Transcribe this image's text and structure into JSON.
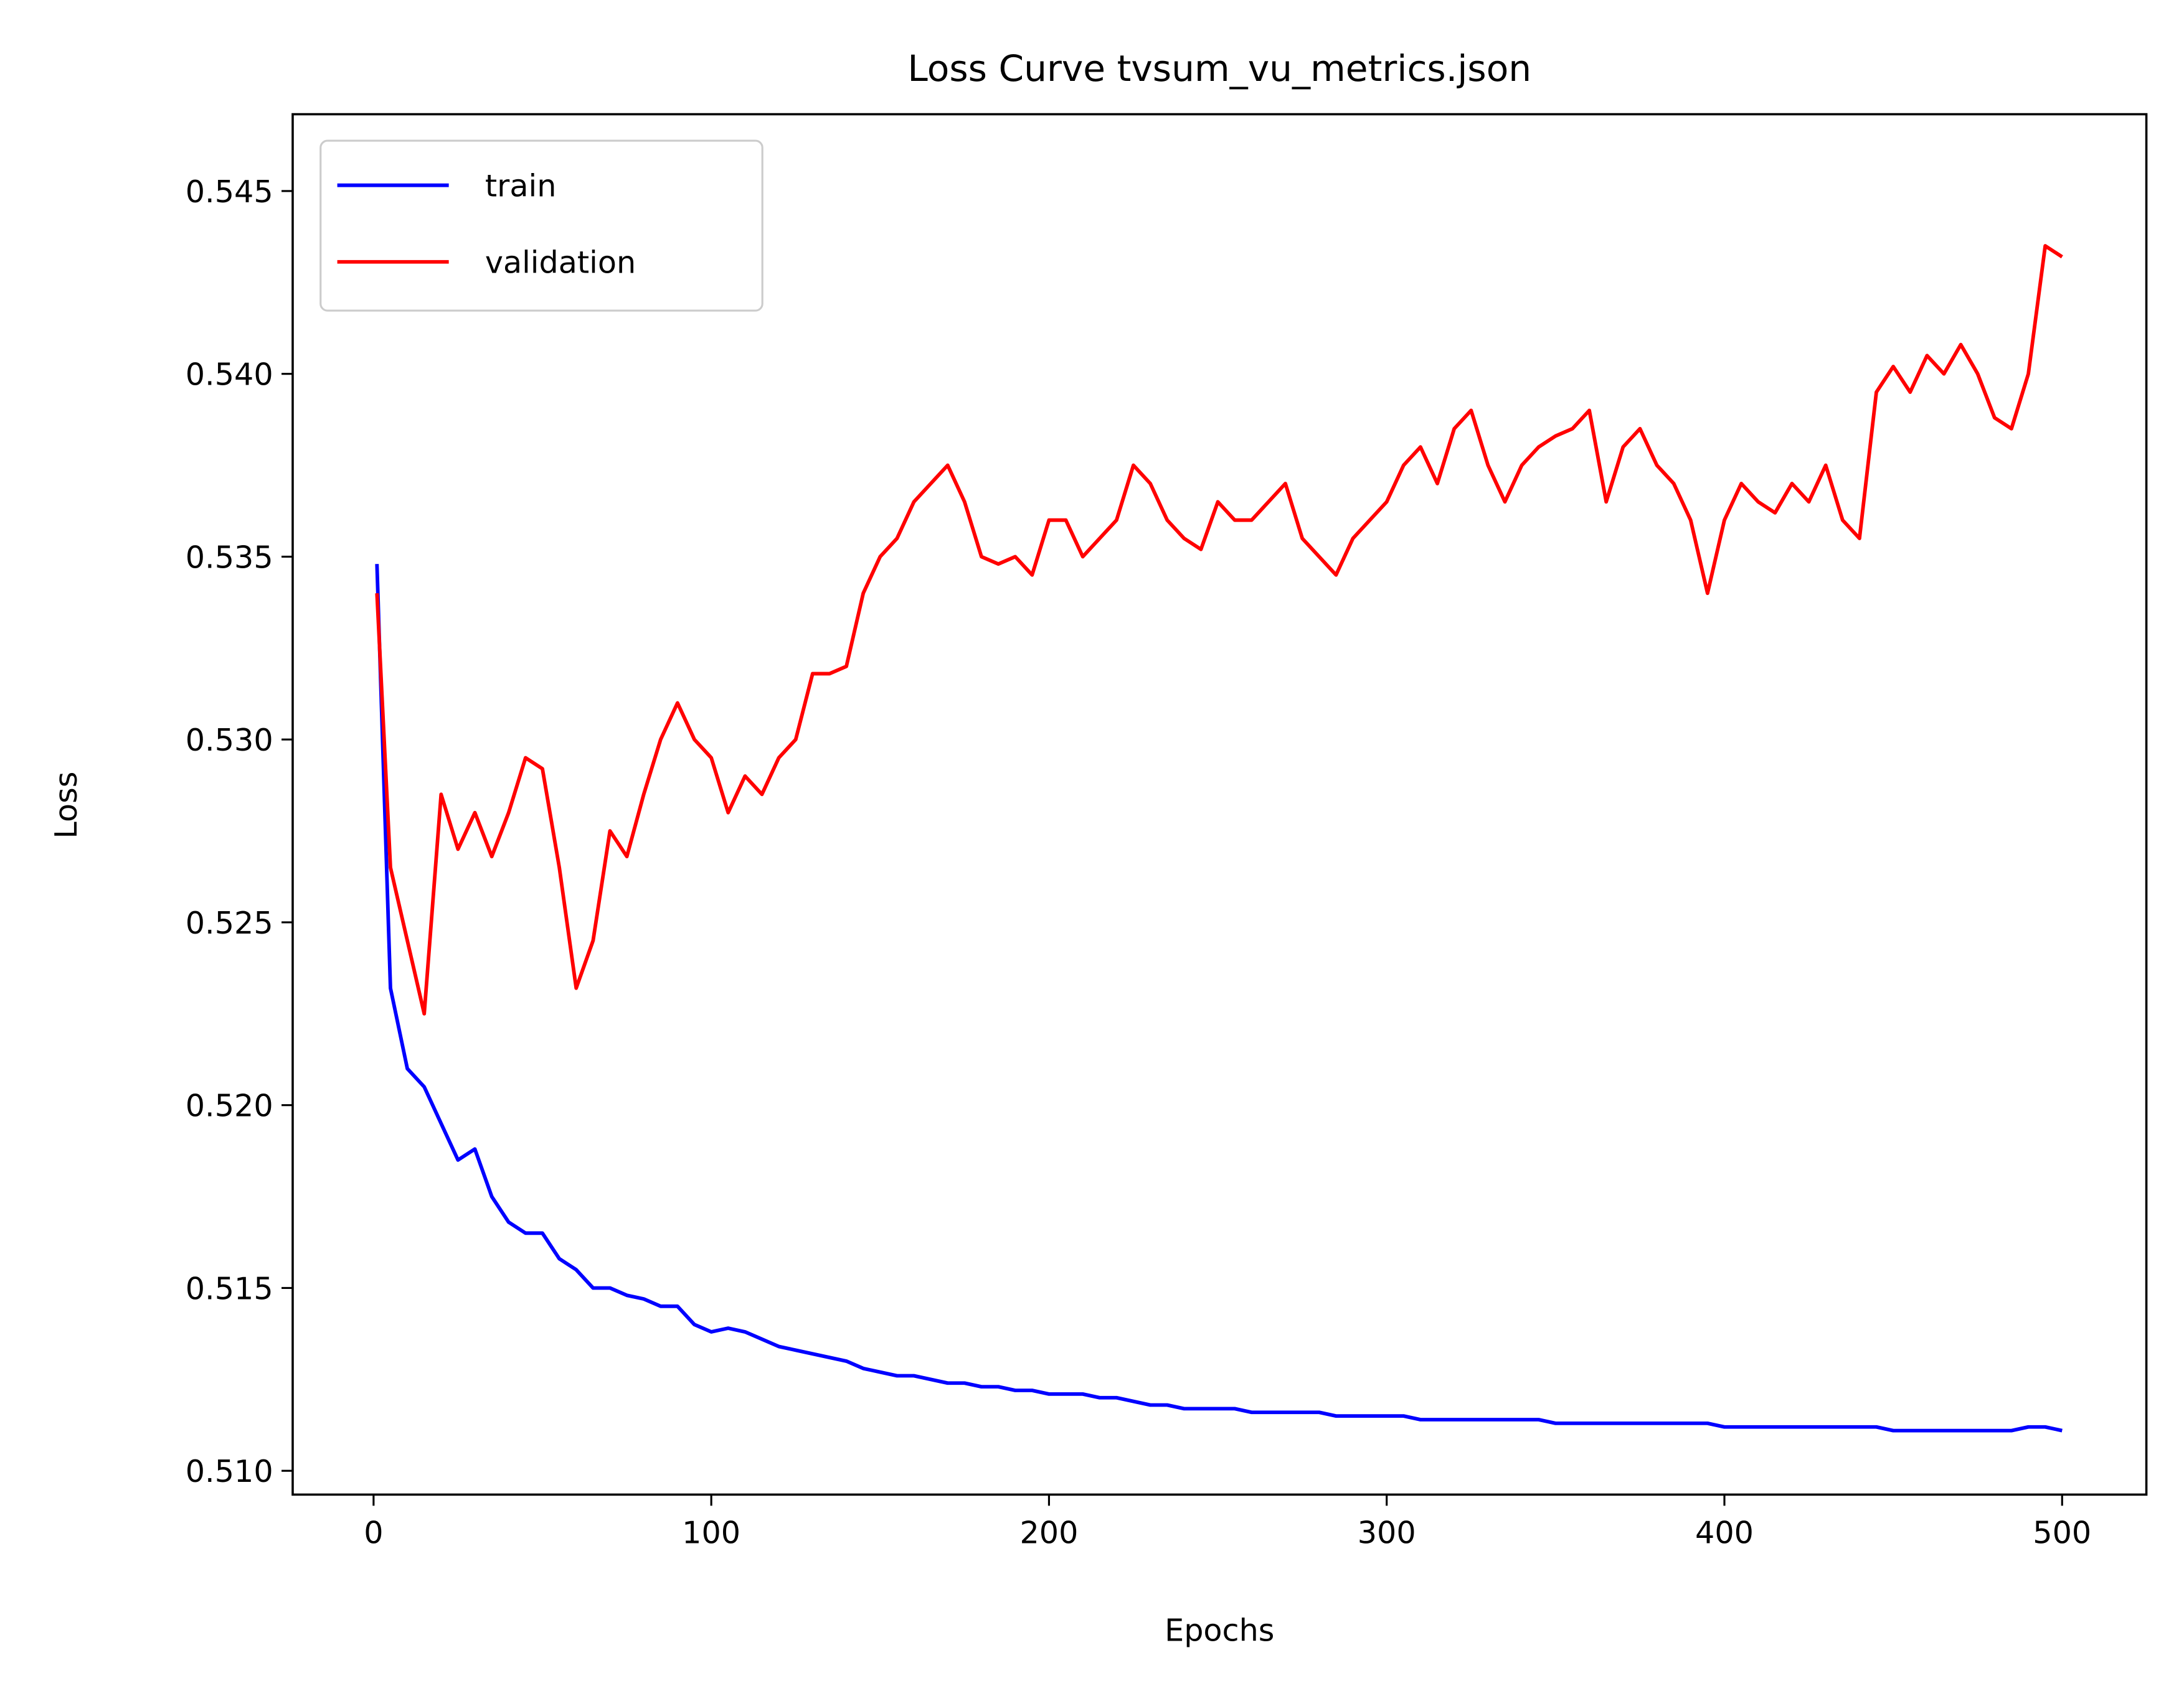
{
  "chart_data": {
    "type": "line",
    "title": "Loss Curve tvsum_vu_metrics.json",
    "xlabel": "Epochs",
    "ylabel": "Loss",
    "legend": "upper left",
    "xlim": [
      -23.95,
      524.95
    ],
    "xticks": [
      0,
      100,
      200,
      300,
      400,
      500
    ],
    "ylim": [
      0.50935,
      0.5471
    ],
    "yticks": [
      {
        "value": 0.51,
        "label": "0.510"
      },
      {
        "value": 0.515,
        "label": "0.515"
      },
      {
        "value": 0.52,
        "label": "0.520"
      },
      {
        "value": 0.525,
        "label": "0.525"
      },
      {
        "value": 0.53,
        "label": "0.530"
      },
      {
        "value": 0.535,
        "label": "0.535"
      },
      {
        "value": 0.54,
        "label": "0.540"
      },
      {
        "value": 0.545,
        "label": "0.545"
      }
    ],
    "x": [
      1,
      5,
      10,
      15,
      20,
      25,
      30,
      35,
      40,
      45,
      50,
      55,
      60,
      65,
      70,
      75,
      80,
      85,
      90,
      95,
      100,
      105,
      110,
      115,
      120,
      125,
      130,
      135,
      140,
      145,
      150,
      155,
      160,
      165,
      170,
      175,
      180,
      185,
      190,
      195,
      200,
      205,
      210,
      215,
      220,
      225,
      230,
      235,
      240,
      245,
      250,
      255,
      260,
      265,
      270,
      275,
      280,
      285,
      290,
      295,
      300,
      305,
      310,
      315,
      320,
      325,
      330,
      335,
      340,
      345,
      350,
      355,
      360,
      365,
      370,
      375,
      380,
      385,
      390,
      395,
      400,
      405,
      410,
      415,
      420,
      425,
      430,
      435,
      440,
      445,
      450,
      455,
      460,
      465,
      470,
      475,
      480,
      485,
      490,
      495,
      500
    ],
    "series": [
      {
        "name": "train",
        "color": "#0000ff",
        "values": [
          0.5348,
          0.5232,
          0.521,
          0.5205,
          0.5195,
          0.5185,
          0.5188,
          0.5175,
          0.5168,
          0.5165,
          0.5165,
          0.5158,
          0.5155,
          0.515,
          0.515,
          0.5148,
          0.5147,
          0.5145,
          0.5145,
          0.514,
          0.5138,
          0.5139,
          0.5138,
          0.5136,
          0.5134,
          0.5133,
          0.5132,
          0.5131,
          0.513,
          0.5128,
          0.5127,
          0.5126,
          0.5126,
          0.5125,
          0.5124,
          0.5124,
          0.5123,
          0.5123,
          0.5122,
          0.5122,
          0.5121,
          0.5121,
          0.5121,
          0.512,
          0.512,
          0.5119,
          0.5118,
          0.5118,
          0.5117,
          0.5117,
          0.5117,
          0.5117,
          0.5116,
          0.5116,
          0.5116,
          0.5116,
          0.5116,
          0.5115,
          0.5115,
          0.5115,
          0.5115,
          0.5115,
          0.5114,
          0.5114,
          0.5114,
          0.5114,
          0.5114,
          0.5114,
          0.5114,
          0.5114,
          0.5113,
          0.5113,
          0.5113,
          0.5113,
          0.5113,
          0.5113,
          0.5113,
          0.5113,
          0.5113,
          0.5113,
          0.5112,
          0.5112,
          0.5112,
          0.5112,
          0.5112,
          0.5112,
          0.5112,
          0.5112,
          0.5112,
          0.5112,
          0.5111,
          0.5111,
          0.5111,
          0.5111,
          0.5111,
          0.5111,
          0.5111,
          0.5111,
          0.5112,
          0.5112,
          0.5111
        ]
      },
      {
        "name": "validation",
        "color": "#ff0000",
        "values": [
          0.534,
          0.5265,
          0.5245,
          0.5225,
          0.5285,
          0.527,
          0.528,
          0.5268,
          0.528,
          0.5295,
          0.5292,
          0.5265,
          0.5232,
          0.5245,
          0.5275,
          0.5268,
          0.5285,
          0.53,
          0.531,
          0.53,
          0.5295,
          0.528,
          0.529,
          0.5285,
          0.5295,
          0.53,
          0.5318,
          0.5318,
          0.532,
          0.534,
          0.535,
          0.5355,
          0.5365,
          0.537,
          0.5375,
          0.5365,
          0.535,
          0.5348,
          0.535,
          0.5345,
          0.536,
          0.536,
          0.535,
          0.5355,
          0.536,
          0.5375,
          0.537,
          0.536,
          0.5355,
          0.5352,
          0.5365,
          0.536,
          0.536,
          0.5365,
          0.537,
          0.5355,
          0.535,
          0.5345,
          0.5355,
          0.536,
          0.5365,
          0.5375,
          0.538,
          0.537,
          0.5385,
          0.539,
          0.5375,
          0.5365,
          0.5375,
          0.538,
          0.5383,
          0.5385,
          0.539,
          0.5365,
          0.538,
          0.5385,
          0.5375,
          0.537,
          0.536,
          0.534,
          0.536,
          0.537,
          0.5365,
          0.5362,
          0.537,
          0.5365,
          0.5375,
          0.536,
          0.5355,
          0.5395,
          0.5402,
          0.5395,
          0.5405,
          0.54,
          0.5408,
          0.54,
          0.5388,
          0.5385,
          0.54,
          0.5435,
          0.5432
        ]
      }
    ]
  }
}
